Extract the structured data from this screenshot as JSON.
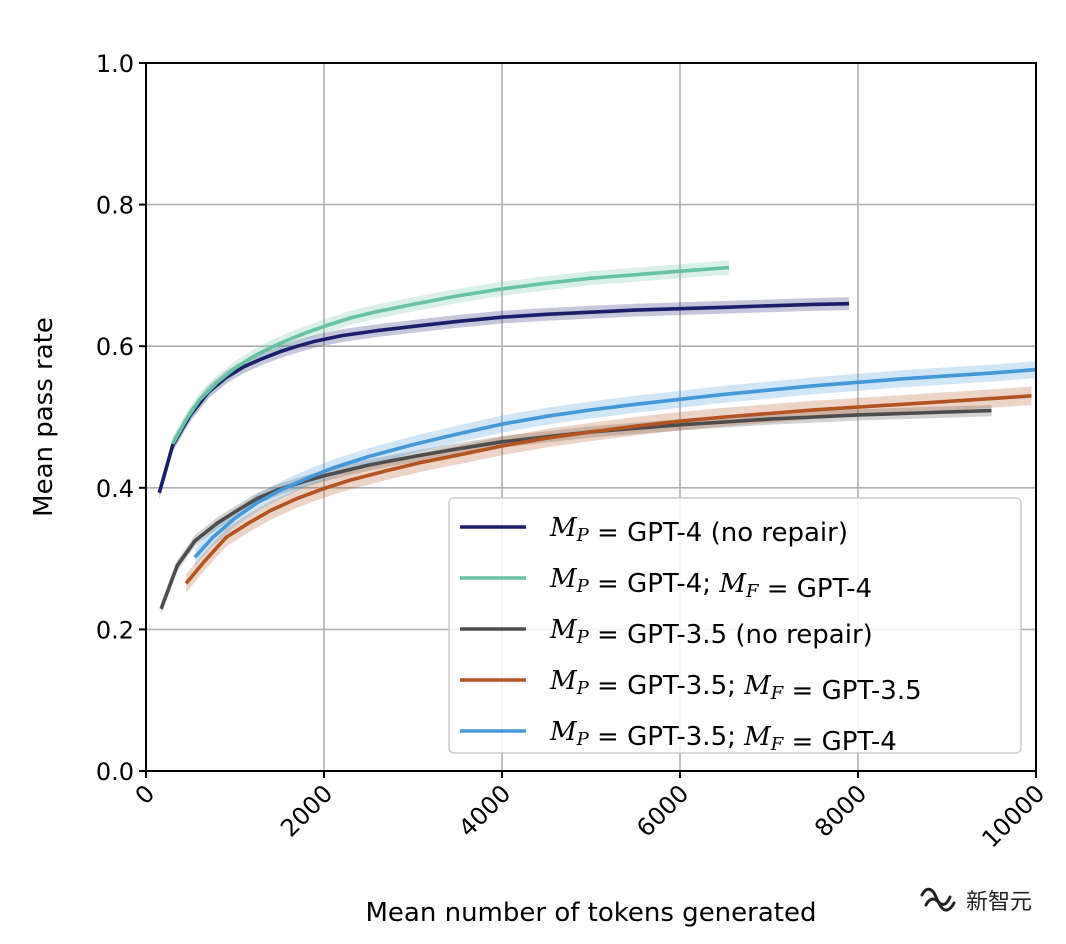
{
  "chart_data": {
    "type": "line",
    "title": "",
    "xlabel": "Mean number of tokens generated",
    "ylabel": "Mean pass rate",
    "xlim": [
      0,
      10000
    ],
    "ylim": [
      0.0,
      1.0
    ],
    "xticks": [
      0,
      2000,
      4000,
      6000,
      8000,
      10000
    ],
    "xtick_labels": [
      "0",
      "2000",
      "4000",
      "6000",
      "8000",
      "10000"
    ],
    "yticks": [
      0.0,
      0.2,
      0.4,
      0.6,
      0.8,
      1.0
    ],
    "ytick_labels": [
      "0.0",
      "0.2",
      "0.4",
      "0.6",
      "0.8",
      "1.0"
    ],
    "grid": true,
    "legend_position": "lower-right",
    "series": [
      {
        "name": "M_P = GPT-4 (no repair)",
        "label_parts": [
          {
            "text": "M",
            "style": "math"
          },
          {
            "text": "P",
            "style": "math-sub"
          },
          {
            "text": " =  GPT-4 (no repair)",
            "style": "plain"
          }
        ],
        "color": "#1b1f6b",
        "band": 0.009,
        "x": [
          150,
          300,
          500,
          700,
          900,
          1100,
          1300,
          1500,
          1700,
          1900,
          2200,
          2600,
          3000,
          3500,
          4000,
          4500,
          5000,
          5500,
          6000,
          6500,
          7000,
          7500,
          7900
        ],
        "y": [
          0.393,
          0.46,
          0.503,
          0.535,
          0.556,
          0.571,
          0.582,
          0.592,
          0.6,
          0.607,
          0.615,
          0.622,
          0.628,
          0.635,
          0.641,
          0.645,
          0.648,
          0.651,
          0.653,
          0.655,
          0.657,
          0.659,
          0.66
        ]
      },
      {
        "name": "M_P = GPT-4; M_F = GPT-4",
        "label_parts": [
          {
            "text": "M",
            "style": "math"
          },
          {
            "text": "P",
            "style": "math-sub"
          },
          {
            "text": " =  GPT-4; ",
            "style": "plain"
          },
          {
            "text": "M",
            "style": "math"
          },
          {
            "text": "F",
            "style": "math-sub"
          },
          {
            "text": " =  GPT-4",
            "style": "plain"
          }
        ],
        "color": "#66c2a5",
        "band": 0.01,
        "x": [
          300,
          450,
          600,
          800,
          1000,
          1200,
          1400,
          1600,
          1800,
          2000,
          2300,
          2600,
          3000,
          3500,
          4000,
          4500,
          5000,
          5500,
          6000,
          6550
        ],
        "y": [
          0.462,
          0.496,
          0.524,
          0.549,
          0.569,
          0.585,
          0.598,
          0.609,
          0.619,
          0.628,
          0.64,
          0.649,
          0.659,
          0.671,
          0.681,
          0.689,
          0.696,
          0.701,
          0.706,
          0.711
        ]
      },
      {
        "name": "M_P = GPT-3.5 (no repair)",
        "label_parts": [
          {
            "text": "M",
            "style": "math"
          },
          {
            "text": "P",
            "style": "math-sub"
          },
          {
            "text": " =  GPT-3.5 (no repair)",
            "style": "plain"
          }
        ],
        "color": "#4d4d4d",
        "band": 0.008,
        "x": [
          170,
          350,
          550,
          800,
          1000,
          1250,
          1500,
          1750,
          2000,
          2500,
          3000,
          3500,
          4000,
          4500,
          5000,
          5500,
          6000,
          6500,
          7000,
          7500,
          8000,
          8500,
          9000,
          9500
        ],
        "y": [
          0.229,
          0.29,
          0.325,
          0.35,
          0.366,
          0.385,
          0.398,
          0.408,
          0.417,
          0.432,
          0.444,
          0.455,
          0.465,
          0.472,
          0.479,
          0.484,
          0.489,
          0.493,
          0.497,
          0.5,
          0.503,
          0.505,
          0.507,
          0.509
        ]
      },
      {
        "name": "M_P = GPT-3.5; M_F = GPT-3.5",
        "label_parts": [
          {
            "text": "M",
            "style": "math"
          },
          {
            "text": "P",
            "style": "math-sub"
          },
          {
            "text": " =  GPT-3.5; ",
            "style": "plain"
          },
          {
            "text": "M",
            "style": "math"
          },
          {
            "text": "F",
            "style": "math-sub"
          },
          {
            "text": " =  GPT-3.5",
            "style": "plain"
          }
        ],
        "color": "#b35420",
        "band": 0.013,
        "x": [
          450,
          650,
          900,
          1150,
          1400,
          1700,
          2000,
          2300,
          2700,
          3100,
          3500,
          4000,
          4500,
          5000,
          5500,
          6000,
          6500,
          7000,
          7500,
          8000,
          8500,
          9000,
          9500,
          9950
        ],
        "y": [
          0.265,
          0.295,
          0.33,
          0.35,
          0.368,
          0.385,
          0.399,
          0.411,
          0.424,
          0.436,
          0.446,
          0.459,
          0.47,
          0.479,
          0.487,
          0.494,
          0.5,
          0.505,
          0.51,
          0.514,
          0.518,
          0.522,
          0.526,
          0.53
        ]
      },
      {
        "name": "M_P = GPT-3.5; M_F = GPT-4",
        "label_parts": [
          {
            "text": "M",
            "style": "math"
          },
          {
            "text": "P",
            "style": "math-sub"
          },
          {
            "text": " =  GPT-3.5; ",
            "style": "plain"
          },
          {
            "text": "M",
            "style": "math"
          },
          {
            "text": "F",
            "style": "math-sub"
          },
          {
            "text": " =  GPT-4",
            "style": "plain"
          }
        ],
        "color": "#4398d8",
        "band": 0.012,
        "x": [
          550,
          750,
          1000,
          1250,
          1500,
          1800,
          2100,
          2500,
          3000,
          3500,
          4000,
          4500,
          5000,
          5500,
          6000,
          6500,
          7000,
          7500,
          8000,
          8500,
          9000,
          9500,
          10000
        ],
        "y": [
          0.302,
          0.33,
          0.357,
          0.379,
          0.396,
          0.413,
          0.428,
          0.444,
          0.461,
          0.476,
          0.49,
          0.501,
          0.51,
          0.518,
          0.525,
          0.532,
          0.538,
          0.544,
          0.549,
          0.554,
          0.558,
          0.562,
          0.567
        ]
      }
    ]
  },
  "watermark": {
    "text": "新智元",
    "icon": "wechat-channel-icon"
  }
}
